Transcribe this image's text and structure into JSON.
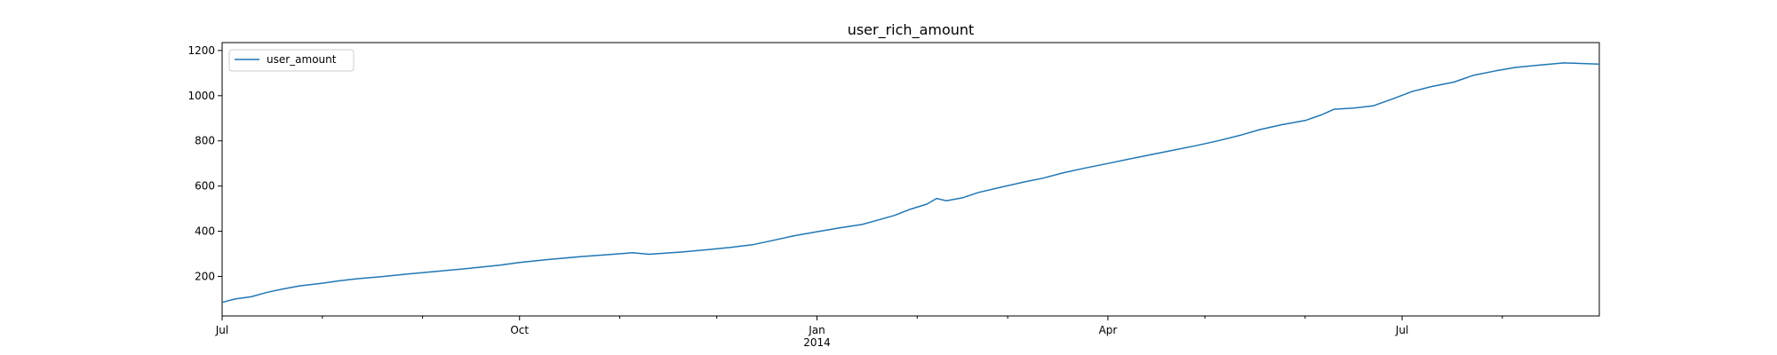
{
  "chart_data": {
    "type": "line",
    "title": "user_rich_amount",
    "xlabel": "",
    "ylabel": "",
    "x_range": [
      "2013-07-01",
      "2014-08-31"
    ],
    "ylim": [
      25,
      1235
    ],
    "x_ticks": [
      {
        "date": "2013-07-01",
        "label": "Jul",
        "sublabel": ""
      },
      {
        "date": "2013-10-01",
        "label": "Oct",
        "sublabel": ""
      },
      {
        "date": "2014-01-01",
        "label": "Jan",
        "sublabel": "2014"
      },
      {
        "date": "2014-04-01",
        "label": "Apr",
        "sublabel": ""
      },
      {
        "date": "2014-07-01",
        "label": "Jul",
        "sublabel": ""
      }
    ],
    "x_minor_ticks": [
      "2013-08-01",
      "2013-09-01",
      "2013-11-01",
      "2013-12-01",
      "2014-02-01",
      "2014-03-01",
      "2014-05-01",
      "2014-06-01",
      "2014-08-01"
    ],
    "y_ticks": [
      200,
      400,
      600,
      800,
      1000,
      1200
    ],
    "grid": false,
    "legend": {
      "position": "top-left",
      "entries": [
        "user_amount"
      ]
    },
    "color": "#1f77b4",
    "series": [
      {
        "name": "user_amount",
        "points": [
          [
            "2013-07-01",
            85
          ],
          [
            "2013-07-05",
            100
          ],
          [
            "2013-07-10",
            110
          ],
          [
            "2013-07-15",
            130
          ],
          [
            "2013-07-20",
            145
          ],
          [
            "2013-07-25",
            158
          ],
          [
            "2013-08-01",
            170
          ],
          [
            "2013-08-06",
            180
          ],
          [
            "2013-08-12",
            190
          ],
          [
            "2013-08-20",
            200
          ],
          [
            "2013-08-27",
            210
          ],
          [
            "2013-09-05",
            222
          ],
          [
            "2013-09-15",
            235
          ],
          [
            "2013-09-25",
            250
          ],
          [
            "2013-10-01",
            262
          ],
          [
            "2013-10-10",
            275
          ],
          [
            "2013-10-20",
            288
          ],
          [
            "2013-10-30",
            298
          ],
          [
            "2013-11-05",
            305
          ],
          [
            "2013-11-10",
            298
          ],
          [
            "2013-11-20",
            308
          ],
          [
            "2013-11-28",
            318
          ],
          [
            "2013-12-05",
            328
          ],
          [
            "2013-12-12",
            340
          ],
          [
            "2013-12-18",
            358
          ],
          [
            "2013-12-25",
            380
          ],
          [
            "2014-01-01",
            398
          ],
          [
            "2014-01-08",
            415
          ],
          [
            "2014-01-15",
            430
          ],
          [
            "2014-01-20",
            450
          ],
          [
            "2014-01-25",
            470
          ],
          [
            "2014-01-30",
            498
          ],
          [
            "2014-02-04",
            520
          ],
          [
            "2014-02-07",
            545
          ],
          [
            "2014-02-10",
            535
          ],
          [
            "2014-02-15",
            548
          ],
          [
            "2014-02-20",
            572
          ],
          [
            "2014-02-27",
            595
          ],
          [
            "2014-03-06",
            618
          ],
          [
            "2014-03-12",
            635
          ],
          [
            "2014-03-18",
            658
          ],
          [
            "2014-03-25",
            680
          ],
          [
            "2014-04-01",
            700
          ],
          [
            "2014-04-07",
            718
          ],
          [
            "2014-04-14",
            738
          ],
          [
            "2014-04-21",
            758
          ],
          [
            "2014-04-28",
            778
          ],
          [
            "2014-05-05",
            800
          ],
          [
            "2014-05-12",
            825
          ],
          [
            "2014-05-18",
            850
          ],
          [
            "2014-05-25",
            872
          ],
          [
            "2014-06-01",
            890
          ],
          [
            "2014-06-06",
            915
          ],
          [
            "2014-06-10",
            940
          ],
          [
            "2014-06-16",
            945
          ],
          [
            "2014-06-22",
            955
          ],
          [
            "2014-06-28",
            985
          ],
          [
            "2014-07-04",
            1018
          ],
          [
            "2014-07-10",
            1040
          ],
          [
            "2014-07-17",
            1060
          ],
          [
            "2014-07-23",
            1090
          ],
          [
            "2014-07-30",
            1110
          ],
          [
            "2014-08-05",
            1125
          ],
          [
            "2014-08-12",
            1135
          ],
          [
            "2014-08-20",
            1145
          ],
          [
            "2014-08-31",
            1140
          ]
        ]
      }
    ]
  }
}
